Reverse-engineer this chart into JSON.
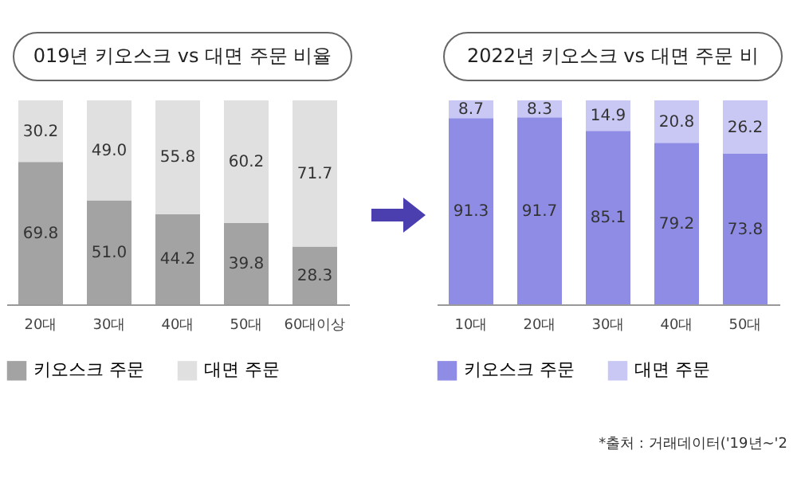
{
  "chart_data": [
    {
      "type": "bar",
      "title": "019년 키오스크 vs 대면 주문 비율",
      "categories": [
        "20대",
        "30대",
        "40대",
        "50대",
        "60대이상"
      ],
      "stacked": true,
      "ylim": [
        0,
        100
      ],
      "tick_labels": "x",
      "legend": "bottom",
      "series": [
        {
          "name": "키오스크 주문",
          "color": "#a3a3a3",
          "values": [
            69.8,
            51.0,
            44.2,
            39.8,
            28.3
          ],
          "value_labels": [
            "69.8",
            "51.0",
            "44.2",
            "39.8",
            "28.3"
          ]
        },
        {
          "name": "대면 주문",
          "color": "#e0e0e0",
          "values": [
            30.2,
            49.0,
            55.8,
            60.2,
            71.7
          ],
          "value_labels": [
            "30.2",
            "49.0",
            "55.8",
            "60.2",
            "71.7"
          ]
        }
      ]
    },
    {
      "type": "bar",
      "title": "2022년 키오스크 vs 대면 주문 비",
      "categories": [
        "10대",
        "20대",
        "30대",
        "40대",
        "50대"
      ],
      "stacked": true,
      "ylim": [
        0,
        100
      ],
      "tick_labels": "x",
      "legend": "bottom",
      "annotations": [
        "*출처 : 거래데이터('19년~'2"
      ],
      "series": [
        {
          "name": "키오스크 주문",
          "color": "#8f8ce6",
          "values": [
            91.3,
            91.7,
            85.1,
            79.2,
            73.8
          ],
          "value_labels": [
            "91.3",
            "91.7",
            "85.1",
            "79.2",
            "73.8"
          ]
        },
        {
          "name": "대면 주문",
          "color": "#c9c8f5",
          "values": [
            8.7,
            8.3,
            14.9,
            20.8,
            26.2
          ],
          "value_labels": [
            "8.7",
            "8.3",
            "14.9",
            "20.8",
            "26.2"
          ]
        }
      ]
    }
  ]
}
